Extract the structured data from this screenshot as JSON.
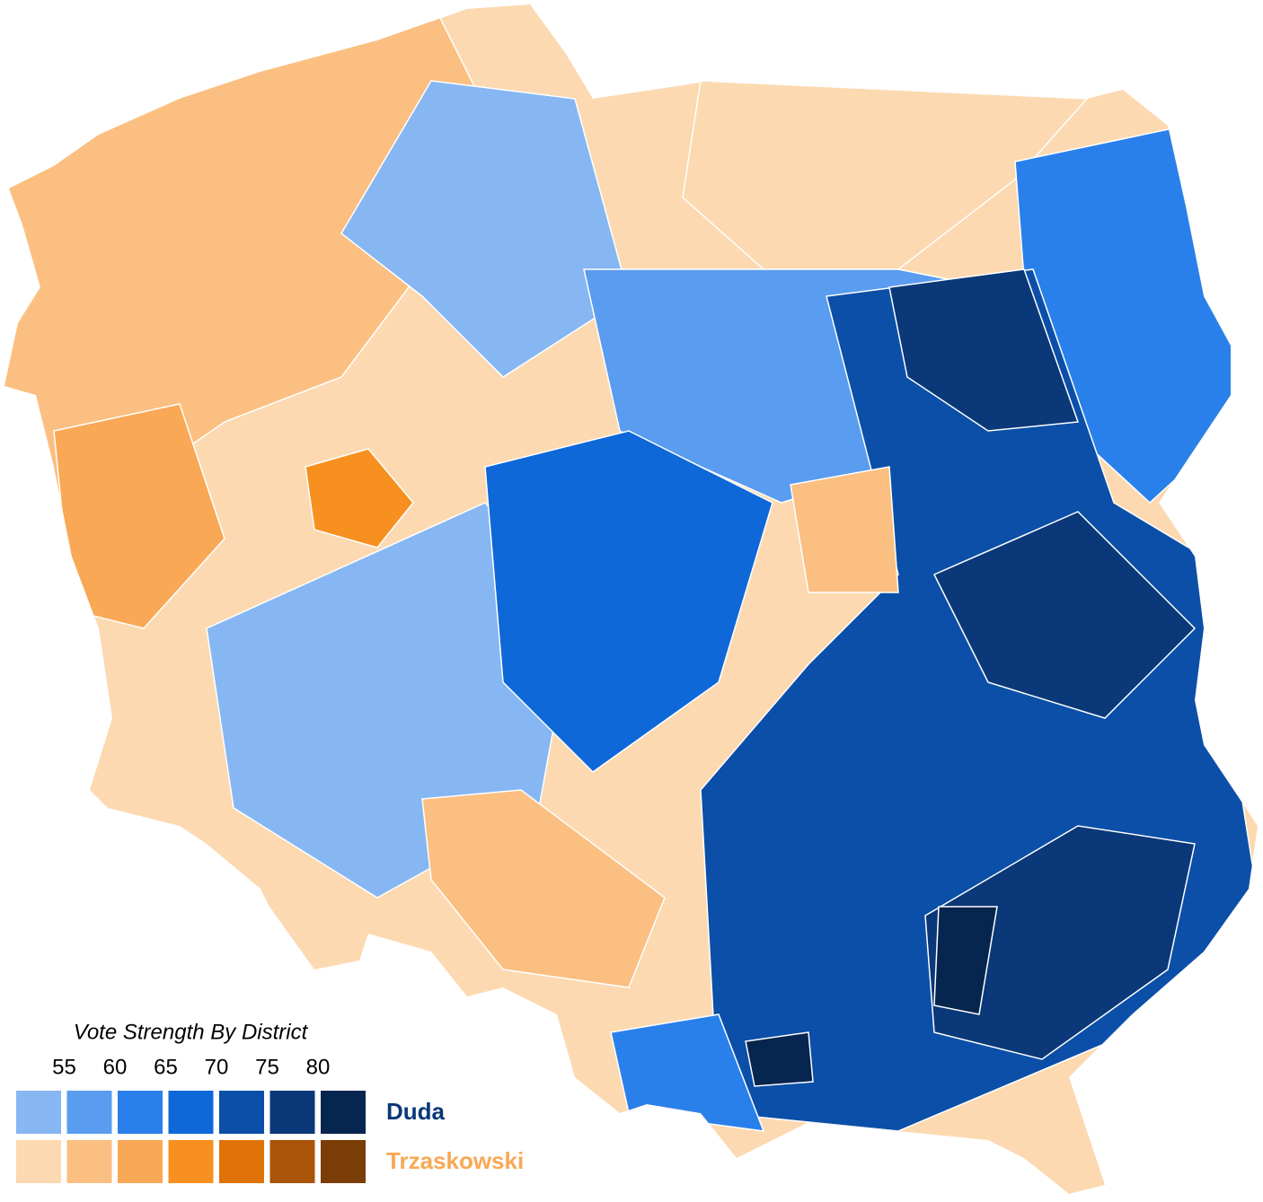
{
  "legend": {
    "title": "Vote Strength By District",
    "ticks": [
      55,
      60,
      65,
      70,
      75,
      80
    ],
    "series": [
      {
        "name": "Duda",
        "color": "#0a3878",
        "scale": [
          "#86b7f2",
          "#5a9cef",
          "#2a80ea",
          "#0f68d8",
          "#0b4fa8",
          "#0a3878",
          "#06254f"
        ]
      },
      {
        "name": "Trzaskowski",
        "color": "#f9a855",
        "scale": [
          "#fcd9b1",
          "#fbbf81",
          "#f9a855",
          "#f7901f",
          "#df7308",
          "#a95407",
          "#7a3d05"
        ]
      }
    ]
  }
}
